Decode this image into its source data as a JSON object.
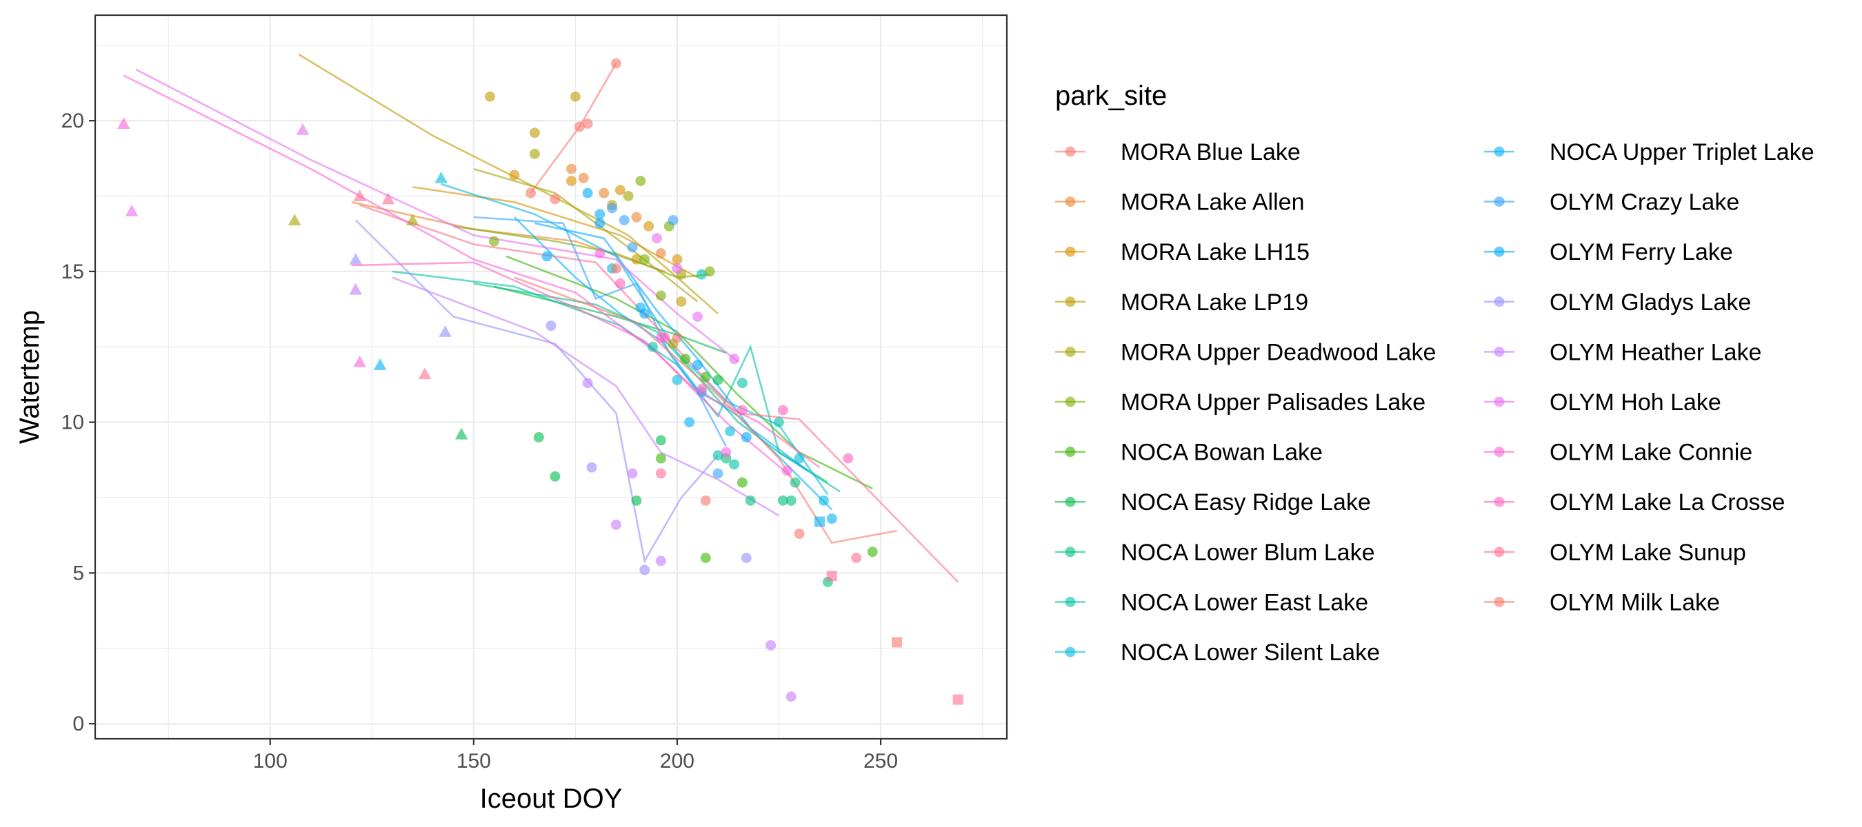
{
  "chart_data": {
    "type": "scatter",
    "xlabel": "Iceout DOY",
    "ylabel": "Watertemp",
    "xlim": [
      57,
      281
    ],
    "ylim": [
      -0.5,
      23.5
    ],
    "x_ticks": [
      100,
      150,
      200,
      250
    ],
    "y_ticks": [
      0,
      5,
      10,
      15,
      20
    ],
    "grid": true,
    "legend": {
      "title": "park_site",
      "placement": "right",
      "columns": 2
    },
    "series": [
      {
        "name": "MORA Blue Lake",
        "color": "#F8766D",
        "points": [
          [
            185,
            21.9
          ],
          [
            178,
            19.9
          ],
          [
            176,
            19.8
          ],
          [
            170,
            17.4
          ],
          [
            164,
            17.6
          ]
        ],
        "line": [
          [
            164,
            17.6
          ],
          [
            176,
            19.8
          ],
          [
            185,
            21.9
          ]
        ]
      },
      {
        "name": "MORA Lake Allen",
        "color": "#EA8331",
        "points": [
          [
            174,
            18.4
          ],
          [
            177,
            18.1
          ],
          [
            182,
            17.6
          ],
          [
            190,
            16.8
          ],
          [
            196,
            15.6
          ]
        ],
        "line": [
          [
            120,
            17.3
          ],
          [
            150,
            16.4
          ],
          [
            175,
            16.0
          ],
          [
            197,
            15.0
          ]
        ]
      },
      {
        "name": "MORA Lake LH15",
        "color": "#D89000",
        "points": [
          [
            160,
            18.2
          ],
          [
            174,
            18.0
          ],
          [
            186,
            17.7
          ],
          [
            193,
            16.5
          ],
          [
            200,
            15.4
          ]
        ],
        "line": [
          [
            135,
            17.8
          ],
          [
            160,
            17.3
          ],
          [
            186,
            16.2
          ],
          [
            205,
            14.8
          ]
        ]
      },
      {
        "name": "MORA Lake LP19",
        "color": "#C09B00",
        "points": [
          [
            154,
            20.8
          ],
          [
            175,
            20.8
          ],
          [
            165,
            19.6
          ],
          [
            184,
            17.2
          ],
          [
            190,
            15.4
          ],
          [
            201,
            14.0
          ]
        ],
        "line": [
          [
            107,
            22.2
          ],
          [
            140,
            19.5
          ],
          [
            165,
            17.8
          ],
          [
            188,
            16.2
          ],
          [
            200,
            14.8
          ],
          [
            210,
            13.6
          ]
        ]
      },
      {
        "name": "MORA Upper Deadwood Lake",
        "color": "#A3A500",
        "points": [
          [
            106,
            16.7
          ],
          [
            135,
            16.7
          ],
          [
            165,
            18.9
          ],
          [
            188,
            17.5
          ],
          [
            199,
            12.6
          ],
          [
            201,
            14.9
          ]
        ],
        "line": [
          [
            150,
            18.4
          ],
          [
            170,
            17.6
          ],
          [
            190,
            15.6
          ],
          [
            205,
            14.0
          ]
        ]
      },
      {
        "name": "MORA Upper Palisades Lake",
        "color": "#7CAE00",
        "points": [
          [
            191,
            18.0
          ],
          [
            155,
            16.0
          ],
          [
            192,
            15.4
          ],
          [
            198,
            16.5
          ],
          [
            208,
            15.0
          ],
          [
            196,
            14.2
          ]
        ],
        "line": [
          [
            145,
            16.5
          ],
          [
            170,
            16.0
          ],
          [
            185,
            15.6
          ],
          [
            200,
            14.8
          ],
          [
            208,
            14.9
          ]
        ]
      },
      {
        "name": "NOCA Bowan Lake",
        "color": "#39B600",
        "points": [
          [
            202,
            12.1
          ],
          [
            207,
            11.5
          ],
          [
            216,
            8.0
          ],
          [
            196,
            8.8
          ],
          [
            207,
            5.5
          ],
          [
            248,
            5.7
          ]
        ],
        "line": [
          [
            158,
            15.5
          ],
          [
            185,
            14.1
          ],
          [
            200,
            13.0
          ],
          [
            215,
            10.9
          ],
          [
            230,
            9.0
          ],
          [
            248,
            7.8
          ]
        ]
      },
      {
        "name": "NOCA Easy Ridge Lake",
        "color": "#00BB4E",
        "points": [
          [
            147,
            9.6
          ],
          [
            166,
            9.5
          ],
          [
            170,
            8.2
          ],
          [
            190,
            7.4
          ],
          [
            196,
            9.4
          ],
          [
            210,
            11.4
          ]
        ],
        "line": [
          [
            155,
            14.5
          ],
          [
            185,
            13.5
          ],
          [
            200,
            12.9
          ],
          [
            212,
            12.3
          ]
        ]
      },
      {
        "name": "NOCA Lower Blum Lake",
        "color": "#00BF7D",
        "points": [
          [
            218,
            7.4
          ],
          [
            228,
            7.4
          ],
          [
            226,
            7.4
          ],
          [
            237,
            4.7
          ],
          [
            212,
            8.8
          ],
          [
            229,
            8.0
          ]
        ],
        "line": [
          [
            150,
            14.6
          ],
          [
            180,
            13.9
          ],
          [
            195,
            13.0
          ],
          [
            205,
            11.5
          ],
          [
            215,
            10.0
          ],
          [
            225,
            9.0
          ],
          [
            237,
            8.0
          ]
        ]
      },
      {
        "name": "NOCA Lower East Lake",
        "color": "#00C1A3",
        "points": [
          [
            216,
            11.3
          ],
          [
            206,
            14.9
          ],
          [
            210,
            8.9
          ],
          [
            214,
            8.6
          ],
          [
            225,
            10.0
          ],
          [
            194,
            12.5
          ]
        ],
        "line": [
          [
            130,
            15.0
          ],
          [
            160,
            14.5
          ],
          [
            186,
            13.2
          ],
          [
            200,
            11.9
          ],
          [
            210,
            10.2
          ],
          [
            218,
            12.5
          ],
          [
            225,
            9.0
          ],
          [
            240,
            7.7
          ]
        ]
      },
      {
        "name": "NOCA Lower Silent Lake",
        "color": "#00BAE0",
        "points": [
          [
            142,
            18.1
          ],
          [
            184,
            15.1
          ],
          [
            200,
            11.4
          ],
          [
            213,
            9.7
          ],
          [
            230,
            8.8
          ],
          [
            236,
            7.4
          ]
        ],
        "line": [
          [
            142,
            17.9
          ],
          [
            165,
            16.9
          ],
          [
            185,
            15.5
          ],
          [
            200,
            12.3
          ],
          [
            212,
            10.7
          ],
          [
            225,
            9.9
          ],
          [
            237,
            7.6
          ]
        ]
      },
      {
        "name": "NOCA Upper Triplet Lake",
        "color": "#00B0F6",
        "points": [
          [
            127,
            11.9
          ],
          [
            181,
            16.9
          ],
          [
            191,
            13.8
          ],
          [
            203,
            10.0
          ],
          [
            235,
            6.7
          ],
          [
            238,
            6.8
          ]
        ],
        "line": [
          [
            160,
            16.8
          ],
          [
            175,
            14.8
          ],
          [
            186,
            13.6
          ],
          [
            196,
            12.7
          ],
          [
            205,
            11.1
          ],
          [
            215,
            10.2
          ],
          [
            238,
            7.1
          ]
        ]
      },
      {
        "name": "OLYM Crazy Lake",
        "color": "#35A2FF",
        "points": [
          [
            184,
            17.1
          ],
          [
            187,
            16.7
          ],
          [
            199,
            16.7
          ],
          [
            189,
            15.8
          ],
          [
            206,
            11.0
          ],
          [
            210,
            8.3
          ]
        ],
        "line": [
          [
            150,
            16.8
          ],
          [
            172,
            16.6
          ],
          [
            180,
            14.1
          ],
          [
            190,
            14.6
          ],
          [
            198,
            12.3
          ],
          [
            205,
            11.0
          ],
          [
            212,
            9.2
          ]
        ]
      },
      {
        "name": "OLYM Ferry Lake",
        "color": "#00A9FF",
        "points": [
          [
            168,
            15.5
          ],
          [
            181,
            16.6
          ],
          [
            178,
            17.6
          ],
          [
            192,
            13.6
          ],
          [
            205,
            11.9
          ],
          [
            217,
            9.5
          ]
        ],
        "line": [
          [
            165,
            16.6
          ],
          [
            182,
            16.1
          ],
          [
            195,
            13.7
          ],
          [
            205,
            12.1
          ],
          [
            218,
            9.8
          ],
          [
            232,
            8.4
          ]
        ]
      },
      {
        "name": "OLYM Gladys Lake",
        "color": "#9590FF",
        "points": [
          [
            121,
            15.4
          ],
          [
            143,
            13.0
          ],
          [
            169,
            13.2
          ],
          [
            179,
            8.5
          ],
          [
            192,
            5.1
          ],
          [
            217,
            5.5
          ]
        ],
        "line": [
          [
            121,
            16.7
          ],
          [
            145,
            13.5
          ],
          [
            170,
            12.6
          ],
          [
            185,
            10.3
          ],
          [
            192,
            5.4
          ],
          [
            201,
            7.5
          ],
          [
            210,
            8.9
          ]
        ]
      },
      {
        "name": "OLYM Heather Lake",
        "color": "#C77CFF",
        "points": [
          [
            121,
            14.4
          ],
          [
            178,
            11.3
          ],
          [
            185,
            6.6
          ],
          [
            189,
            8.3
          ],
          [
            196,
            5.4
          ],
          [
            223,
            2.6
          ],
          [
            228,
            0.9
          ]
        ],
        "line": [
          [
            130,
            14.8
          ],
          [
            165,
            13.0
          ],
          [
            185,
            11.2
          ],
          [
            196,
            9.0
          ],
          [
            210,
            8.1
          ],
          [
            225,
            6.9
          ]
        ]
      },
      {
        "name": "OLYM Hoh Lake",
        "color": "#E76BF3",
        "points": [
          [
            66,
            17.0
          ],
          [
            108,
            19.7
          ],
          [
            195,
            16.1
          ],
          [
            200,
            15.1
          ],
          [
            205,
            13.5
          ],
          [
            214,
            12.1
          ]
        ],
        "line": [
          [
            67,
            21.7
          ],
          [
            110,
            18.7
          ],
          [
            150,
            16.2
          ],
          [
            185,
            15.4
          ],
          [
            200,
            13.6
          ],
          [
            215,
            12.0
          ]
        ]
      },
      {
        "name": "OLYM Lake Connie",
        "color": "#FA62DB",
        "points": [
          [
            64,
            19.9
          ],
          [
            122,
            12.0
          ],
          [
            181,
            15.6
          ],
          [
            196,
            12.8
          ],
          [
            212,
            9.0
          ],
          [
            227,
            8.4
          ]
        ],
        "line": [
          [
            64,
            21.5
          ],
          [
            110,
            18.4
          ],
          [
            150,
            15.4
          ],
          [
            175,
            14.3
          ],
          [
            195,
            12.3
          ],
          [
            212,
            10.0
          ],
          [
            228,
            8.2
          ]
        ]
      },
      {
        "name": "OLYM Lake La Crosse",
        "color": "#FF62BC",
        "points": [
          [
            186,
            14.6
          ],
          [
            197,
            12.8
          ],
          [
            206,
            11.1
          ],
          [
            216,
            10.4
          ],
          [
            226,
            10.4
          ],
          [
            242,
            8.8
          ]
        ],
        "line": [
          [
            120,
            15.2
          ],
          [
            150,
            15.3
          ],
          [
            175,
            13.8
          ],
          [
            192,
            12.7
          ],
          [
            205,
            11.0
          ],
          [
            220,
            10.0
          ],
          [
            235,
            8.5
          ]
        ]
      },
      {
        "name": "OLYM Lake Sunup",
        "color": "#FF6C91",
        "points": [
          [
            122,
            17.5
          ],
          [
            129,
            17.4
          ],
          [
            138,
            11.6
          ],
          [
            196,
            8.3
          ],
          [
            238,
            4.9
          ],
          [
            244,
            5.5
          ],
          [
            269,
            0.8
          ]
        ],
        "line": [
          [
            122,
            17.2
          ],
          [
            150,
            15.9
          ],
          [
            180,
            15.3
          ],
          [
            196,
            13.0
          ],
          [
            215,
            10.3
          ],
          [
            230,
            10.1
          ],
          [
            269,
            4.7
          ]
        ]
      },
      {
        "name": "OLYM Milk Lake",
        "color": "#F8766D",
        "points": [
          [
            185,
            15.1
          ],
          [
            200,
            12.8
          ],
          [
            207,
            7.4
          ],
          [
            230,
            6.3
          ],
          [
            254,
            2.7
          ]
        ],
        "line": [
          [
            160,
            14.8
          ],
          [
            190,
            13.3
          ],
          [
            210,
            10.9
          ],
          [
            225,
            8.8
          ],
          [
            238,
            6.0
          ],
          [
            254,
            6.4
          ]
        ]
      }
    ]
  }
}
